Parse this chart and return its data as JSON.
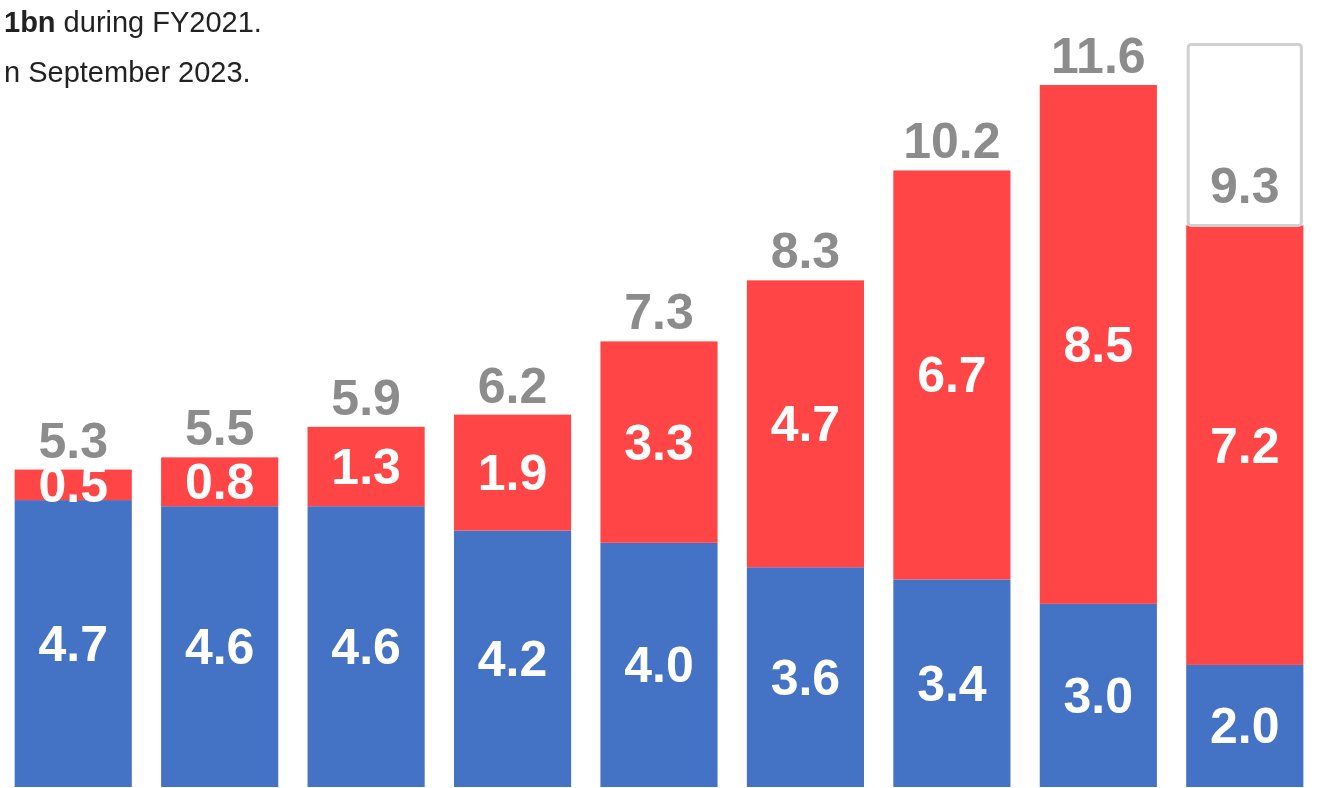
{
  "chart_data": {
    "type": "bar",
    "stacked": true,
    "categories": [
      null,
      null,
      null,
      null,
      null,
      null,
      null,
      null,
      null
    ],
    "series": [
      {
        "color": "#4472c4",
        "values": [
          4.7,
          4.6,
          4.6,
          4.2,
          4.0,
          3.6,
          3.4,
          3.0,
          2.0
        ],
        "value_labels": [
          "4.7",
          "4.6",
          "4.6",
          "4.2",
          "4.0",
          "3.6",
          "3.4",
          "3.0",
          "2.0"
        ]
      },
      {
        "color": "#ff4545",
        "values": [
          0.5,
          0.8,
          1.3,
          1.9,
          3.3,
          4.7,
          6.7,
          8.5,
          7.2
        ],
        "value_labels": [
          "0.5",
          "0.8",
          "1.3",
          "1.9",
          "3.3",
          "4.7",
          "6.7",
          "8.5",
          "7.2"
        ]
      }
    ],
    "totals": [
      "5.3",
      "5.5",
      "5.9",
      "6.2",
      "7.3",
      "8.3",
      "10.2",
      "11.6",
      "9.3"
    ],
    "annotations": [
      "1bn during FY2021.",
      "n September 2023."
    ]
  }
}
